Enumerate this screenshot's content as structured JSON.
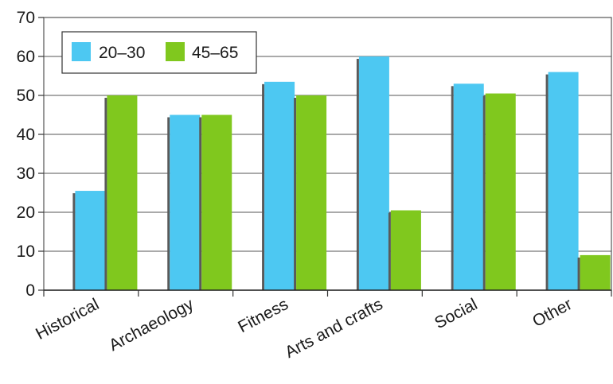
{
  "chart_data": {
    "type": "bar",
    "title": "",
    "xlabel": "",
    "ylabel": "",
    "ylim": [
      0,
      70
    ],
    "yticks": [
      "0",
      "10",
      "20",
      "30",
      "40",
      "50",
      "60",
      "70"
    ],
    "grid": true,
    "legend_position": "top-left",
    "categories": [
      "Historical",
      "Archaeology",
      "Fitness",
      "Arts and crafts",
      "Social",
      "Other"
    ],
    "series": [
      {
        "name": "20–30",
        "color": "#4dc8f2",
        "values": [
          25.5,
          45,
          53.5,
          60,
          53,
          56
        ]
      },
      {
        "name": "45–65",
        "color": "#80c81e",
        "values": [
          50,
          45,
          50,
          20.5,
          50.5,
          9
        ]
      }
    ]
  }
}
